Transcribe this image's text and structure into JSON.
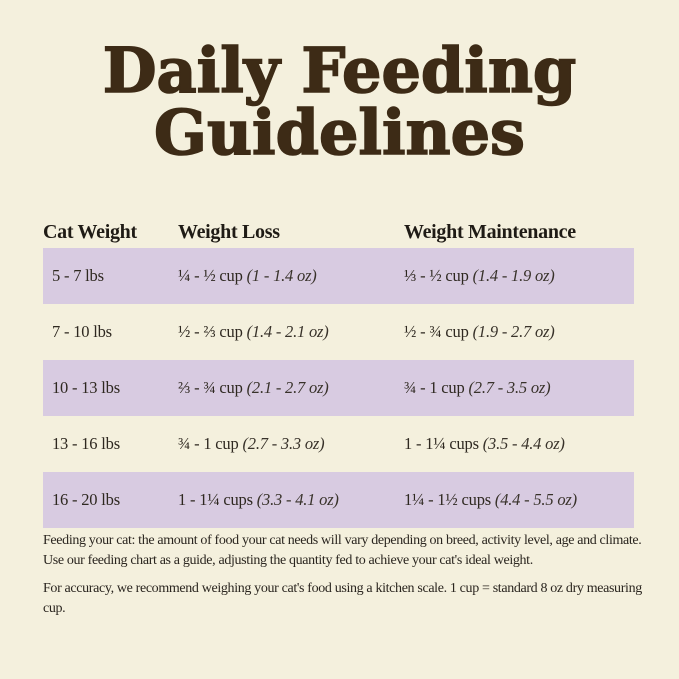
{
  "title": {
    "line1": "Daily Feeding",
    "line2": "Guidelines"
  },
  "colors": {
    "background": "#f4f0dd",
    "row_highlight": "#d8cbe1",
    "title_brown": "#3d2b16",
    "body_text": "#2a251f"
  },
  "table": {
    "headers": [
      "Cat Weight",
      "Weight Loss",
      "Weight Maintenance"
    ],
    "rows": [
      {
        "weight": "5 - 7 lbs",
        "loss_cups": "¼ - ½ cup",
        "loss_oz": "(1 - 1.4 oz)",
        "maint_cups": "⅓ - ½ cup",
        "maint_oz": "(1.4 - 1.9 oz)"
      },
      {
        "weight": "7 - 10 lbs",
        "loss_cups": "½ - ⅔ cup",
        "loss_oz": "(1.4 - 2.1 oz)",
        "maint_cups": "½ - ¾ cup",
        "maint_oz": "(1.9 - 2.7 oz)"
      },
      {
        "weight": "10 - 13 lbs",
        "loss_cups": "⅔ - ¾ cup",
        "loss_oz": "(2.1 - 2.7 oz)",
        "maint_cups": "¾ - 1 cup",
        "maint_oz": "(2.7 - 3.5 oz)"
      },
      {
        "weight": "13 - 16 lbs",
        "loss_cups": "¾ - 1 cup",
        "loss_oz": "(2.7 - 3.3 oz)",
        "maint_cups": "1 - 1¼ cups",
        "maint_oz": "(3.5 - 4.4 oz)"
      },
      {
        "weight": "16 - 20 lbs",
        "loss_cups": "1 - 1¼ cups",
        "loss_oz": "(3.3 - 4.1 oz)",
        "maint_cups": "1¼ - 1½ cups",
        "maint_oz": "(4.4 - 5.5 oz)"
      }
    ]
  },
  "notes": [
    "Feeding your cat: the amount of food your cat needs will vary depending on breed, activity level, age and climate. Use our feeding chart as a guide, adjusting the quantity fed to achieve your cat's ideal weight.",
    "For accuracy, we recommend weighing your cat's food using a kitchen scale. 1 cup = standard 8 oz dry measuring cup."
  ]
}
